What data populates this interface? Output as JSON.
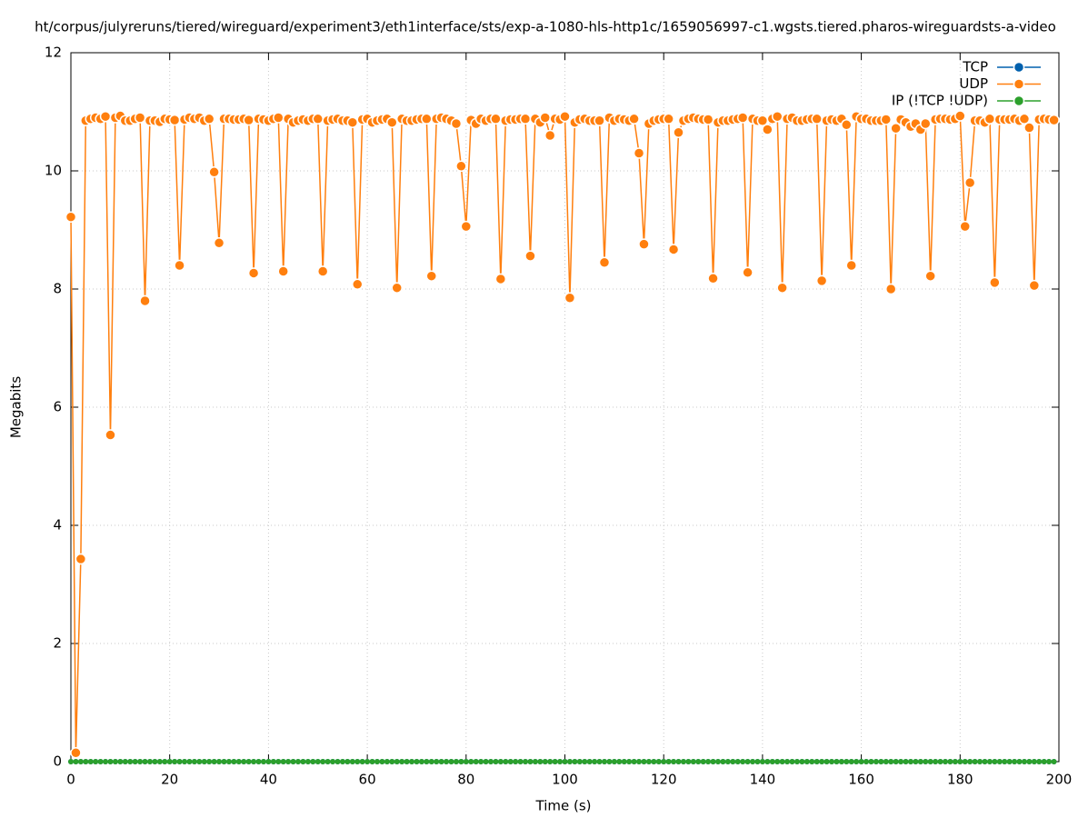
{
  "chart_data": {
    "type": "line",
    "title": "ht/corpus/julyreruns/tiered/wireguard/experiment3/eth1interface/sts/exp-a-1080-hls-http1c/1659056997-c1.wgsts.tiered.pharos-wireguardsts-a-video",
    "xlabel": "Time (s)",
    "ylabel": "Megabits",
    "x": [
      0,
      1,
      2,
      3,
      4,
      5,
      6,
      7,
      8,
      9,
      10,
      11,
      12,
      13,
      14,
      15,
      16,
      17,
      18,
      19,
      20,
      21,
      22,
      23,
      24,
      25,
      26,
      27,
      28,
      29,
      30,
      31,
      32,
      33,
      34,
      35,
      36,
      37,
      38,
      39,
      40,
      41,
      42,
      43,
      44,
      45,
      46,
      47,
      48,
      49,
      50,
      51,
      52,
      53,
      54,
      55,
      56,
      57,
      58,
      59,
      60,
      61,
      62,
      63,
      64,
      65,
      66,
      67,
      68,
      69,
      70,
      71,
      72,
      73,
      74,
      75,
      76,
      77,
      78,
      79,
      80,
      81,
      82,
      83,
      84,
      85,
      86,
      87,
      88,
      89,
      90,
      91,
      92,
      93,
      94,
      95,
      96,
      97,
      98,
      99,
      100,
      101,
      102,
      103,
      104,
      105,
      106,
      107,
      108,
      109,
      110,
      111,
      112,
      113,
      114,
      115,
      116,
      117,
      118,
      119,
      120,
      121,
      122,
      123,
      124,
      125,
      126,
      127,
      128,
      129,
      130,
      131,
      132,
      133,
      134,
      135,
      136,
      137,
      138,
      139,
      140,
      141,
      142,
      143,
      144,
      145,
      146,
      147,
      148,
      149,
      150,
      151,
      152,
      153,
      154,
      155,
      156,
      157,
      158,
      159,
      160,
      161,
      162,
      163,
      164,
      165,
      166,
      167,
      168,
      169,
      170,
      171,
      172,
      173,
      174,
      175,
      176,
      177,
      178,
      179,
      180,
      181,
      182,
      183,
      184,
      185,
      186,
      187,
      188,
      189,
      190,
      191,
      192,
      193,
      194,
      195,
      196,
      197,
      198,
      199
    ],
    "series": [
      {
        "name": "TCP",
        "color": "#0060ad",
        "values": [
          0,
          0,
          0,
          0,
          0,
          0,
          0,
          0,
          0,
          0,
          0,
          0,
          0,
          0,
          0,
          0,
          0,
          0,
          0,
          0,
          0,
          0,
          0,
          0,
          0,
          0,
          0,
          0,
          0,
          0,
          0,
          0,
          0,
          0,
          0,
          0,
          0,
          0,
          0,
          0,
          0,
          0,
          0,
          0,
          0,
          0,
          0,
          0,
          0,
          0,
          0,
          0,
          0,
          0,
          0,
          0,
          0,
          0,
          0,
          0,
          0,
          0,
          0,
          0,
          0,
          0,
          0,
          0,
          0,
          0,
          0,
          0,
          0,
          0,
          0,
          0,
          0,
          0,
          0,
          0,
          0,
          0,
          0,
          0,
          0,
          0,
          0,
          0,
          0,
          0,
          0,
          0,
          0,
          0,
          0,
          0,
          0,
          0,
          0,
          0,
          0,
          0,
          0,
          0,
          0,
          0,
          0,
          0,
          0,
          0,
          0,
          0,
          0,
          0,
          0,
          0,
          0,
          0,
          0,
          0,
          0,
          0,
          0,
          0,
          0,
          0,
          0,
          0,
          0,
          0,
          0,
          0,
          0,
          0,
          0,
          0,
          0,
          0,
          0,
          0,
          0,
          0,
          0,
          0,
          0,
          0,
          0,
          0,
          0,
          0,
          0,
          0,
          0,
          0,
          0,
          0,
          0,
          0,
          0,
          0,
          0,
          0,
          0,
          0,
          0,
          0,
          0,
          0,
          0,
          0,
          0,
          0,
          0,
          0,
          0,
          0,
          0,
          0,
          0,
          0,
          0,
          0,
          0,
          0,
          0,
          0,
          0,
          0,
          0,
          0,
          0,
          0,
          0,
          0,
          0,
          0,
          0,
          0,
          0,
          0
        ]
      },
      {
        "name": "UDP",
        "color": "#ff7f0e",
        "values": [
          9.22,
          0.15,
          3.43,
          10.85,
          10.88,
          10.9,
          10.88,
          10.92,
          5.53,
          10.9,
          10.93,
          10.85,
          10.85,
          10.88,
          10.9,
          7.8,
          10.85,
          10.85,
          10.83,
          10.88,
          10.87,
          10.86,
          8.4,
          10.87,
          10.9,
          10.88,
          10.9,
          10.85,
          10.88,
          9.98,
          8.78,
          10.88,
          10.88,
          10.87,
          10.87,
          10.88,
          10.86,
          8.27,
          10.88,
          10.87,
          10.85,
          10.88,
          10.9,
          8.3,
          10.88,
          10.82,
          10.85,
          10.87,
          10.85,
          10.88,
          10.88,
          8.3,
          10.85,
          10.87,
          10.88,
          10.85,
          10.85,
          10.82,
          8.08,
          10.87,
          10.88,
          10.82,
          10.85,
          10.87,
          10.88,
          10.82,
          8.02,
          10.88,
          10.85,
          10.85,
          10.87,
          10.88,
          10.88,
          8.22,
          10.88,
          10.9,
          10.88,
          10.85,
          10.8,
          10.08,
          9.06,
          10.86,
          10.8,
          10.88,
          10.85,
          10.88,
          10.88,
          8.17,
          10.85,
          10.87,
          10.87,
          10.88,
          10.88,
          8.56,
          10.88,
          10.82,
          10.9,
          10.6,
          10.88,
          10.87,
          10.92,
          7.85,
          10.82,
          10.87,
          10.88,
          10.85,
          10.85,
          10.85,
          8.45,
          10.9,
          10.85,
          10.88,
          10.87,
          10.85,
          10.88,
          10.3,
          8.76,
          10.8,
          10.85,
          10.87,
          10.88,
          10.88,
          8.67,
          10.65,
          10.85,
          10.88,
          10.9,
          10.88,
          10.87,
          10.87,
          8.18,
          10.82,
          10.85,
          10.85,
          10.87,
          10.88,
          10.9,
          8.28,
          10.88,
          10.85,
          10.85,
          10.7,
          10.88,
          10.92,
          8.02,
          10.88,
          10.9,
          10.85,
          10.85,
          10.87,
          10.88,
          10.88,
          8.14,
          10.85,
          10.87,
          10.85,
          10.88,
          10.78,
          8.4,
          10.92,
          10.88,
          10.88,
          10.85,
          10.85,
          10.85,
          10.87,
          8.0,
          10.72,
          10.87,
          10.82,
          10.75,
          10.8,
          10.7,
          10.8,
          8.22,
          10.87,
          10.88,
          10.88,
          10.87,
          10.88,
          10.93,
          9.06,
          9.8,
          10.85,
          10.85,
          10.82,
          10.88,
          8.11,
          10.87,
          10.87,
          10.87,
          10.88,
          10.85,
          10.88,
          10.73,
          8.06,
          10.87,
          10.88,
          10.87,
          10.86
        ]
      },
      {
        "name": "IP (!TCP  !UDP)",
        "color": "#2ca02c",
        "values": [
          0,
          0,
          0,
          0,
          0,
          0,
          0,
          0,
          0,
          0,
          0,
          0,
          0,
          0,
          0,
          0,
          0,
          0,
          0,
          0,
          0,
          0,
          0,
          0,
          0,
          0,
          0,
          0,
          0,
          0,
          0,
          0,
          0,
          0,
          0,
          0,
          0,
          0,
          0,
          0,
          0,
          0,
          0,
          0,
          0,
          0,
          0,
          0,
          0,
          0,
          0,
          0,
          0,
          0,
          0,
          0,
          0,
          0,
          0,
          0,
          0,
          0,
          0,
          0,
          0,
          0,
          0,
          0,
          0,
          0,
          0,
          0,
          0,
          0,
          0,
          0,
          0,
          0,
          0,
          0,
          0,
          0,
          0,
          0,
          0,
          0,
          0,
          0,
          0,
          0,
          0,
          0,
          0,
          0,
          0,
          0,
          0,
          0,
          0,
          0,
          0,
          0,
          0,
          0,
          0,
          0,
          0,
          0,
          0,
          0,
          0,
          0,
          0,
          0,
          0,
          0,
          0,
          0,
          0,
          0,
          0,
          0,
          0,
          0,
          0,
          0,
          0,
          0,
          0,
          0,
          0,
          0,
          0,
          0,
          0,
          0,
          0,
          0,
          0,
          0,
          0,
          0,
          0,
          0,
          0,
          0,
          0,
          0,
          0,
          0,
          0,
          0,
          0,
          0,
          0,
          0,
          0,
          0,
          0,
          0,
          0,
          0,
          0,
          0,
          0,
          0,
          0,
          0,
          0,
          0,
          0,
          0,
          0,
          0,
          0,
          0,
          0,
          0,
          0,
          0,
          0,
          0,
          0,
          0,
          0,
          0,
          0,
          0,
          0,
          0,
          0,
          0,
          0,
          0,
          0,
          0,
          0,
          0,
          0,
          0
        ]
      }
    ],
    "xlim": [
      0,
      200
    ],
    "xticks": [
      0,
      20,
      40,
      60,
      80,
      100,
      120,
      140,
      160,
      180,
      200
    ],
    "ylim": [
      0,
      12
    ],
    "yticks": [
      0,
      2,
      4,
      6,
      8,
      10,
      12
    ],
    "grid": true,
    "legend": "top-right"
  }
}
